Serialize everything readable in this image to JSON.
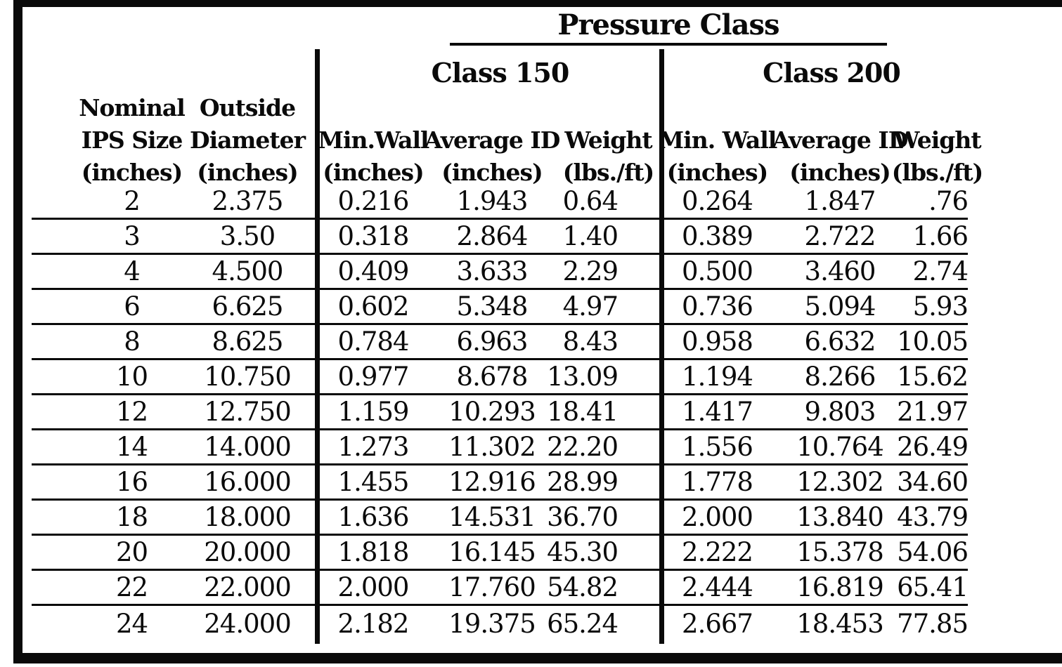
{
  "table": {
    "title": "Pressure Class",
    "class_groups": {
      "class150": "Class 150",
      "class200": "Class 200"
    },
    "col_headers": [
      {
        "line1": "Nominal",
        "line2": "IPS Size",
        "line3": "(inches)"
      },
      {
        "line1": "Outside",
        "line2": "Diameter",
        "line3": "(inches)"
      },
      {
        "line1": "",
        "line2": "Min.Wall",
        "line3": "(inches)"
      },
      {
        "line1": "",
        "line2": "Average ID",
        "line3": "(inches)"
      },
      {
        "line1": "",
        "line2": "Weight",
        "line3": "(lbs./ft)"
      },
      {
        "line1": "",
        "line2": "Min. Wall",
        "line3": "(inches)"
      },
      {
        "line1": "",
        "line2": "Average ID",
        "line3": "(inches)"
      },
      {
        "line1": "",
        "line2": "Weight",
        "line3": "(lbs./ft)"
      }
    ],
    "rows": [
      [
        "2",
        "2.375",
        "0.216",
        "1.943",
        "0.64",
        "0.264",
        "1.847",
        ".76"
      ],
      [
        "3",
        "3.50",
        "0.318",
        "2.864",
        "1.40",
        "0.389",
        "2.722",
        "1.66"
      ],
      [
        "4",
        "4.500",
        "0.409",
        "3.633",
        "2.29",
        "0.500",
        "3.460",
        "2.74"
      ],
      [
        "6",
        "6.625",
        "0.602",
        "5.348",
        "4.97",
        "0.736",
        "5.094",
        "5.93"
      ],
      [
        "8",
        "8.625",
        "0.784",
        "6.963",
        "8.43",
        "0.958",
        "6.632",
        "10.05"
      ],
      [
        "10",
        "10.750",
        "0.977",
        "8.678",
        "13.09",
        "1.194",
        "8.266",
        "15.62"
      ],
      [
        "12",
        "12.750",
        "1.159",
        "10.293",
        "18.41",
        "1.417",
        "9.803",
        "21.97"
      ],
      [
        "14",
        "14.000",
        "1.273",
        "11.302",
        "22.20",
        "1.556",
        "10.764",
        "26.49"
      ],
      [
        "16",
        "16.000",
        "1.455",
        "12.916",
        "28.99",
        "1.778",
        "12.302",
        "34.60"
      ],
      [
        "18",
        "18.000",
        "1.636",
        "14.531",
        "36.70",
        "2.000",
        "13.840",
        "43.79"
      ],
      [
        "20",
        "20.000",
        "1.818",
        "16.145",
        "45.30",
        "2.222",
        "15.378",
        "54.06"
      ],
      [
        "22",
        "22.000",
        "2.000",
        "17.760",
        "54.82",
        "2.444",
        "16.819",
        "65.41"
      ],
      [
        "24",
        "24.000",
        "2.182",
        "19.375",
        "65.24",
        "2.667",
        "18.453",
        "77.85"
      ]
    ],
    "colors": {
      "ink": "#0a0a0a",
      "paper": "#ffffff"
    }
  }
}
